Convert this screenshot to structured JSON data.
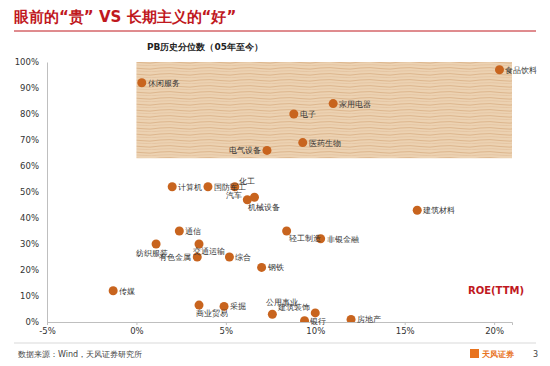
{
  "chart_data": {
    "type": "scatter",
    "title": "眼前的“贵” VS 长期主义的“好”",
    "y_label": "PB历史分位数（05年至今）",
    "x_label": "ROE(TTM)",
    "source": "数据来源：Wind，天风证券研究所",
    "page": "3",
    "logo_text": "天风证券",
    "color": "#c8641e",
    "labels": [
      "食品饮料",
      "休闲服务",
      "家用电器",
      "电子",
      "医药生物",
      "电气设备",
      "计算机",
      "国防军工",
      "化工",
      "汽车",
      "机械设备",
      "建筑材料",
      "通信",
      "轻工制造",
      "非银金融",
      "交通运输",
      "纺织服装",
      "有色金属",
      "综合",
      "钢铁",
      "传媒",
      "商业贸易",
      "采掘",
      "公用事业",
      "建筑装饰",
      "银行",
      "房地产"
    ],
    "x": [
      20.3,
      0.3,
      11.0,
      8.8,
      9.3,
      7.3,
      2.0,
      4.0,
      5.5,
      6.2,
      6.6,
      15.7,
      2.4,
      8.4,
      10.3,
      3.5,
      1.1,
      3.4,
      5.2,
      7.0,
      -1.3,
      3.5,
      4.9,
      7.6,
      10.0,
      9.4,
      12.0
    ],
    "values": [
      97,
      92,
      84,
      80,
      69,
      66,
      52,
      52,
      52,
      47,
      48,
      43,
      35,
      35,
      32,
      30,
      30,
      25,
      25,
      21,
      12,
      6.5,
      6,
      3,
      3.5,
      0.5,
      1
    ],
    "band": {
      "x": [
        0,
        21
      ],
      "y": [
        63,
        100
      ]
    },
    "xlim": [
      -5,
      21
    ],
    "ylim": [
      0,
      100
    ],
    "xticks": [
      {
        "value": -5,
        "label": "-5%"
      },
      {
        "value": 0,
        "label": "0%"
      },
      {
        "value": 5,
        "label": "5%"
      },
      {
        "value": 10,
        "label": "10%"
      },
      {
        "value": 15,
        "label": "15%"
      },
      {
        "value": 20,
        "label": "20%"
      }
    ],
    "yticks": [
      {
        "value": 0,
        "label": "0%"
      },
      {
        "value": 10,
        "label": "10%"
      },
      {
        "value": 20,
        "label": "20%"
      },
      {
        "value": 30,
        "label": "30%"
      },
      {
        "value": 40,
        "label": "40%"
      },
      {
        "value": 50,
        "label": "50%"
      },
      {
        "value": 60,
        "label": "60%"
      },
      {
        "value": 70,
        "label": "70%"
      },
      {
        "value": 80,
        "label": "80%"
      },
      {
        "value": 90,
        "label": "90%"
      },
      {
        "value": 100,
        "label": "100%"
      }
    ]
  }
}
